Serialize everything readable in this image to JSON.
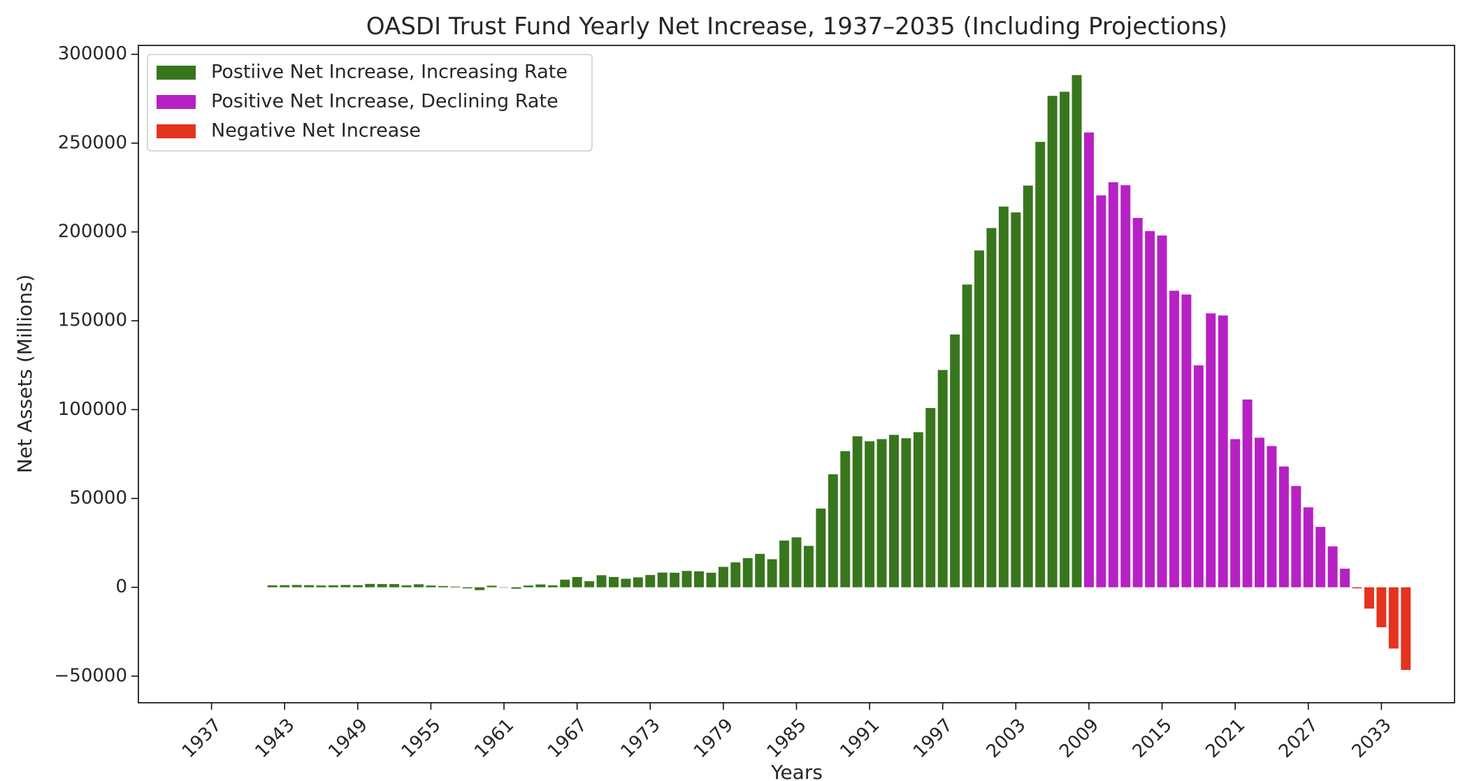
{
  "chart_data": {
    "type": "bar",
    "title": "OASDI Trust Fund Yearly Net Increase, 1937–2035 (Including Projections)",
    "xlabel": "Years",
    "ylabel": "Net Assets (Millions)",
    "xlim": [
      1931,
      2039
    ],
    "ylim": [
      -65000,
      305000
    ],
    "xticks": [
      1937,
      1943,
      1949,
      1955,
      1961,
      1967,
      1973,
      1979,
      1985,
      1991,
      1997,
      2003,
      2009,
      2015,
      2021,
      2027,
      2033
    ],
    "yticks": [
      -50000,
      0,
      50000,
      100000,
      150000,
      200000,
      250000,
      300000
    ],
    "grid": false,
    "legend_position": "top-left",
    "series": [
      {
        "name": "Postiive Net Increase, Increasing Rate",
        "color": "#38761d",
        "x": [
          1942,
          1943,
          1944,
          1945,
          1946,
          1947,
          1948,
          1949,
          1950,
          1951,
          1952,
          1953,
          1954,
          1955,
          1956,
          1957,
          1958,
          1959,
          1960,
          1961,
          1962,
          1963,
          1964,
          1965,
          1966,
          1967,
          1968,
          1969,
          1970,
          1971,
          1972,
          1973,
          1974,
          1975,
          1976,
          1977,
          1978,
          1979,
          1980,
          1981,
          1982,
          1983,
          1984,
          1985,
          1986,
          1987,
          1988,
          1989,
          1990,
          1991,
          1992,
          1993,
          1994,
          1995,
          1996,
          1997,
          1998,
          1999,
          2000,
          2001,
          2002,
          2003,
          2004,
          2005,
          2006,
          2007,
          2008
        ],
        "values": [
          1100,
          1200,
          1300,
          1200,
          1000,
          1100,
          1300,
          1200,
          1900,
          1800,
          1800,
          1100,
          1700,
          1000,
          700,
          400,
          -600,
          -1600,
          900,
          -100,
          -800,
          1000,
          1600,
          1100,
          4300,
          5800,
          3400,
          6800,
          5800,
          4800,
          5600,
          6900,
          8300,
          8200,
          9200,
          9000,
          8200,
          11500,
          14000,
          16400,
          18800,
          15800,
          26300,
          28100,
          23300,
          44300,
          63600,
          76600,
          85000,
          82200,
          83400,
          85800,
          83900,
          87300,
          100900,
          122300,
          142300,
          170400,
          189600,
          202200,
          214300,
          211000,
          226100,
          250700,
          276600,
          278900,
          288300
        ]
      },
      {
        "name": "Positive Net Increase, Declining Rate",
        "color": "#b621c4",
        "x": [
          2009,
          2010,
          2011,
          2012,
          2013,
          2014,
          2015,
          2016,
          2017,
          2018,
          2019,
          2020,
          2021,
          2022,
          2023,
          2024,
          2025,
          2026,
          2027,
          2028,
          2029,
          2030
        ],
        "values": [
          256000,
          220600,
          228000,
          226300,
          207900,
          200500,
          198000,
          166900,
          164800,
          124900,
          154200,
          153000,
          83400,
          105700,
          84200,
          79500,
          68000,
          57000,
          45000,
          34000,
          23000,
          10500
        ]
      },
      {
        "name": "Negative Net Increase",
        "color": "#e4331f",
        "x": [
          2031,
          2032,
          2033,
          2034,
          2035
        ],
        "values": [
          -600,
          -12000,
          -22500,
          -34500,
          -46500
        ]
      }
    ]
  }
}
